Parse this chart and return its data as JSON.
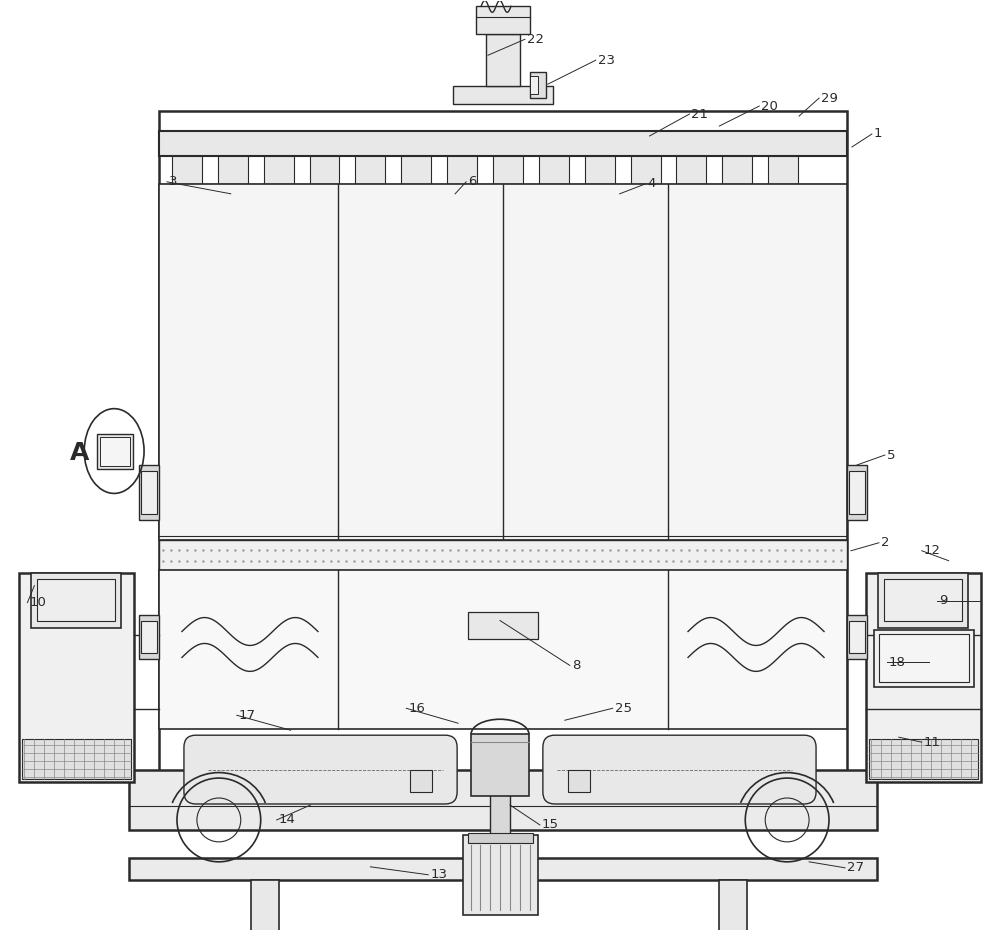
{
  "bg": "#ffffff",
  "lc": "#2a2a2a",
  "fw": 10.0,
  "fh": 9.31
}
